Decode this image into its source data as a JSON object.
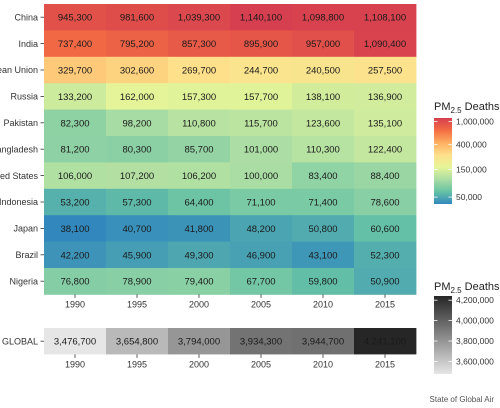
{
  "chart_data": [
    {
      "type": "heatmap",
      "x": [
        "1990",
        "1995",
        "2000",
        "2005",
        "2010",
        "2015"
      ],
      "y": [
        "China",
        "India",
        "European Union",
        "Russia",
        "Pakistan",
        "Bangladesh",
        "United States",
        "Indonesia",
        "Japan",
        "Brazil",
        "Nigeria"
      ],
      "values": [
        [
          945300,
          981600,
          1039300,
          1140100,
          1098800,
          1108100
        ],
        [
          737400,
          795200,
          857300,
          895900,
          957000,
          1090400
        ],
        [
          329700,
          302600,
          269700,
          244700,
          240500,
          257500
        ],
        [
          133200,
          162000,
          157300,
          157700,
          138100,
          136900
        ],
        [
          82300,
          98200,
          110800,
          115700,
          123600,
          135100
        ],
        [
          81200,
          80300,
          85700,
          101000,
          110300,
          122400
        ],
        [
          106000,
          107200,
          106200,
          100000,
          83400,
          88400
        ],
        [
          53200,
          57300,
          64400,
          71100,
          71400,
          78600
        ],
        [
          38100,
          40700,
          41800,
          48200,
          50800,
          60600
        ],
        [
          42200,
          45900,
          49300,
          46900,
          43100,
          52300
        ],
        [
          76800,
          78900,
          79400,
          67700,
          59800,
          50900
        ]
      ],
      "labels": [
        [
          "945,300",
          "981,600",
          "1,039,300",
          "1,140,100",
          "1,098,800",
          "1,108,100"
        ],
        [
          "737,400",
          "795,200",
          "857,300",
          "895,900",
          "957,000",
          "1,090,400"
        ],
        [
          "329,700",
          "302,600",
          "269,700",
          "244,700",
          "240,500",
          "257,500"
        ],
        [
          "133,200",
          "162,000",
          "157,300",
          "157,700",
          "138,100",
          "136,900"
        ],
        [
          "82,300",
          "98,200",
          "110,800",
          "115,700",
          "123,600",
          "135,100"
        ],
        [
          "81,200",
          "80,300",
          "85,700",
          "101,000",
          "110,300",
          "122,400"
        ],
        [
          "106,000",
          "107,200",
          "106,200",
          "100,000",
          "83,400",
          "88,400"
        ],
        [
          "53,200",
          "57,300",
          "64,400",
          "71,100",
          "71,400",
          "78,600"
        ],
        [
          "38,100",
          "40,700",
          "41,800",
          "48,200",
          "50,800",
          "60,600"
        ],
        [
          "42,200",
          "45,900",
          "49,300",
          "46,900",
          "43,100",
          "52,300"
        ],
        [
          "76,800",
          "78,900",
          "79,400",
          "67,700",
          "59,800",
          "50,900"
        ]
      ],
      "color_scale": "log",
      "palette": "spectral",
      "legend": {
        "title": "PM",
        "subscript": "2.5",
        "title_suffix": " Deaths",
        "breaks": [
          "1,000,000",
          "400,000",
          "150,000",
          "50,000"
        ],
        "break_values": [
          1000000,
          400000,
          150000,
          50000
        ],
        "range": [
          38000,
          1150000
        ],
        "placement": "right"
      }
    },
    {
      "type": "heatmap",
      "x": [
        "1990",
        "1995",
        "2000",
        "2005",
        "2010",
        "2015"
      ],
      "y": [
        "GLOBAL"
      ],
      "values": [
        [
          3476700,
          3654800,
          3794000,
          3934300,
          3944700,
          4241100
        ]
      ],
      "labels": [
        [
          "3,476,700",
          "3,654,800",
          "3,794,000",
          "3,934,300",
          "3,944,700",
          "4,241,100"
        ]
      ],
      "color_scale": "linear",
      "palette": "greys",
      "legend": {
        "title": "PM",
        "subscript": "2.5",
        "title_suffix": " Deaths",
        "breaks": [
          "4,200,000",
          "4,000,000",
          "3,800,000",
          "3,600,000"
        ],
        "break_values": [
          4200000,
          4000000,
          3800000,
          3600000
        ],
        "range": [
          3476700,
          4241100
        ],
        "placement": "right"
      }
    }
  ],
  "colors": {
    "panel_background": "#ebebeb",
    "spectral": [
      "#3288bd",
      "#66c2a5",
      "#abdda4",
      "#e6f598",
      "#fee08b",
      "#fdae61",
      "#f46d43",
      "#d53e4f"
    ],
    "greys_low": "#e6e6e6",
    "greys_high": "#262626"
  },
  "credit": "State of Global Air"
}
